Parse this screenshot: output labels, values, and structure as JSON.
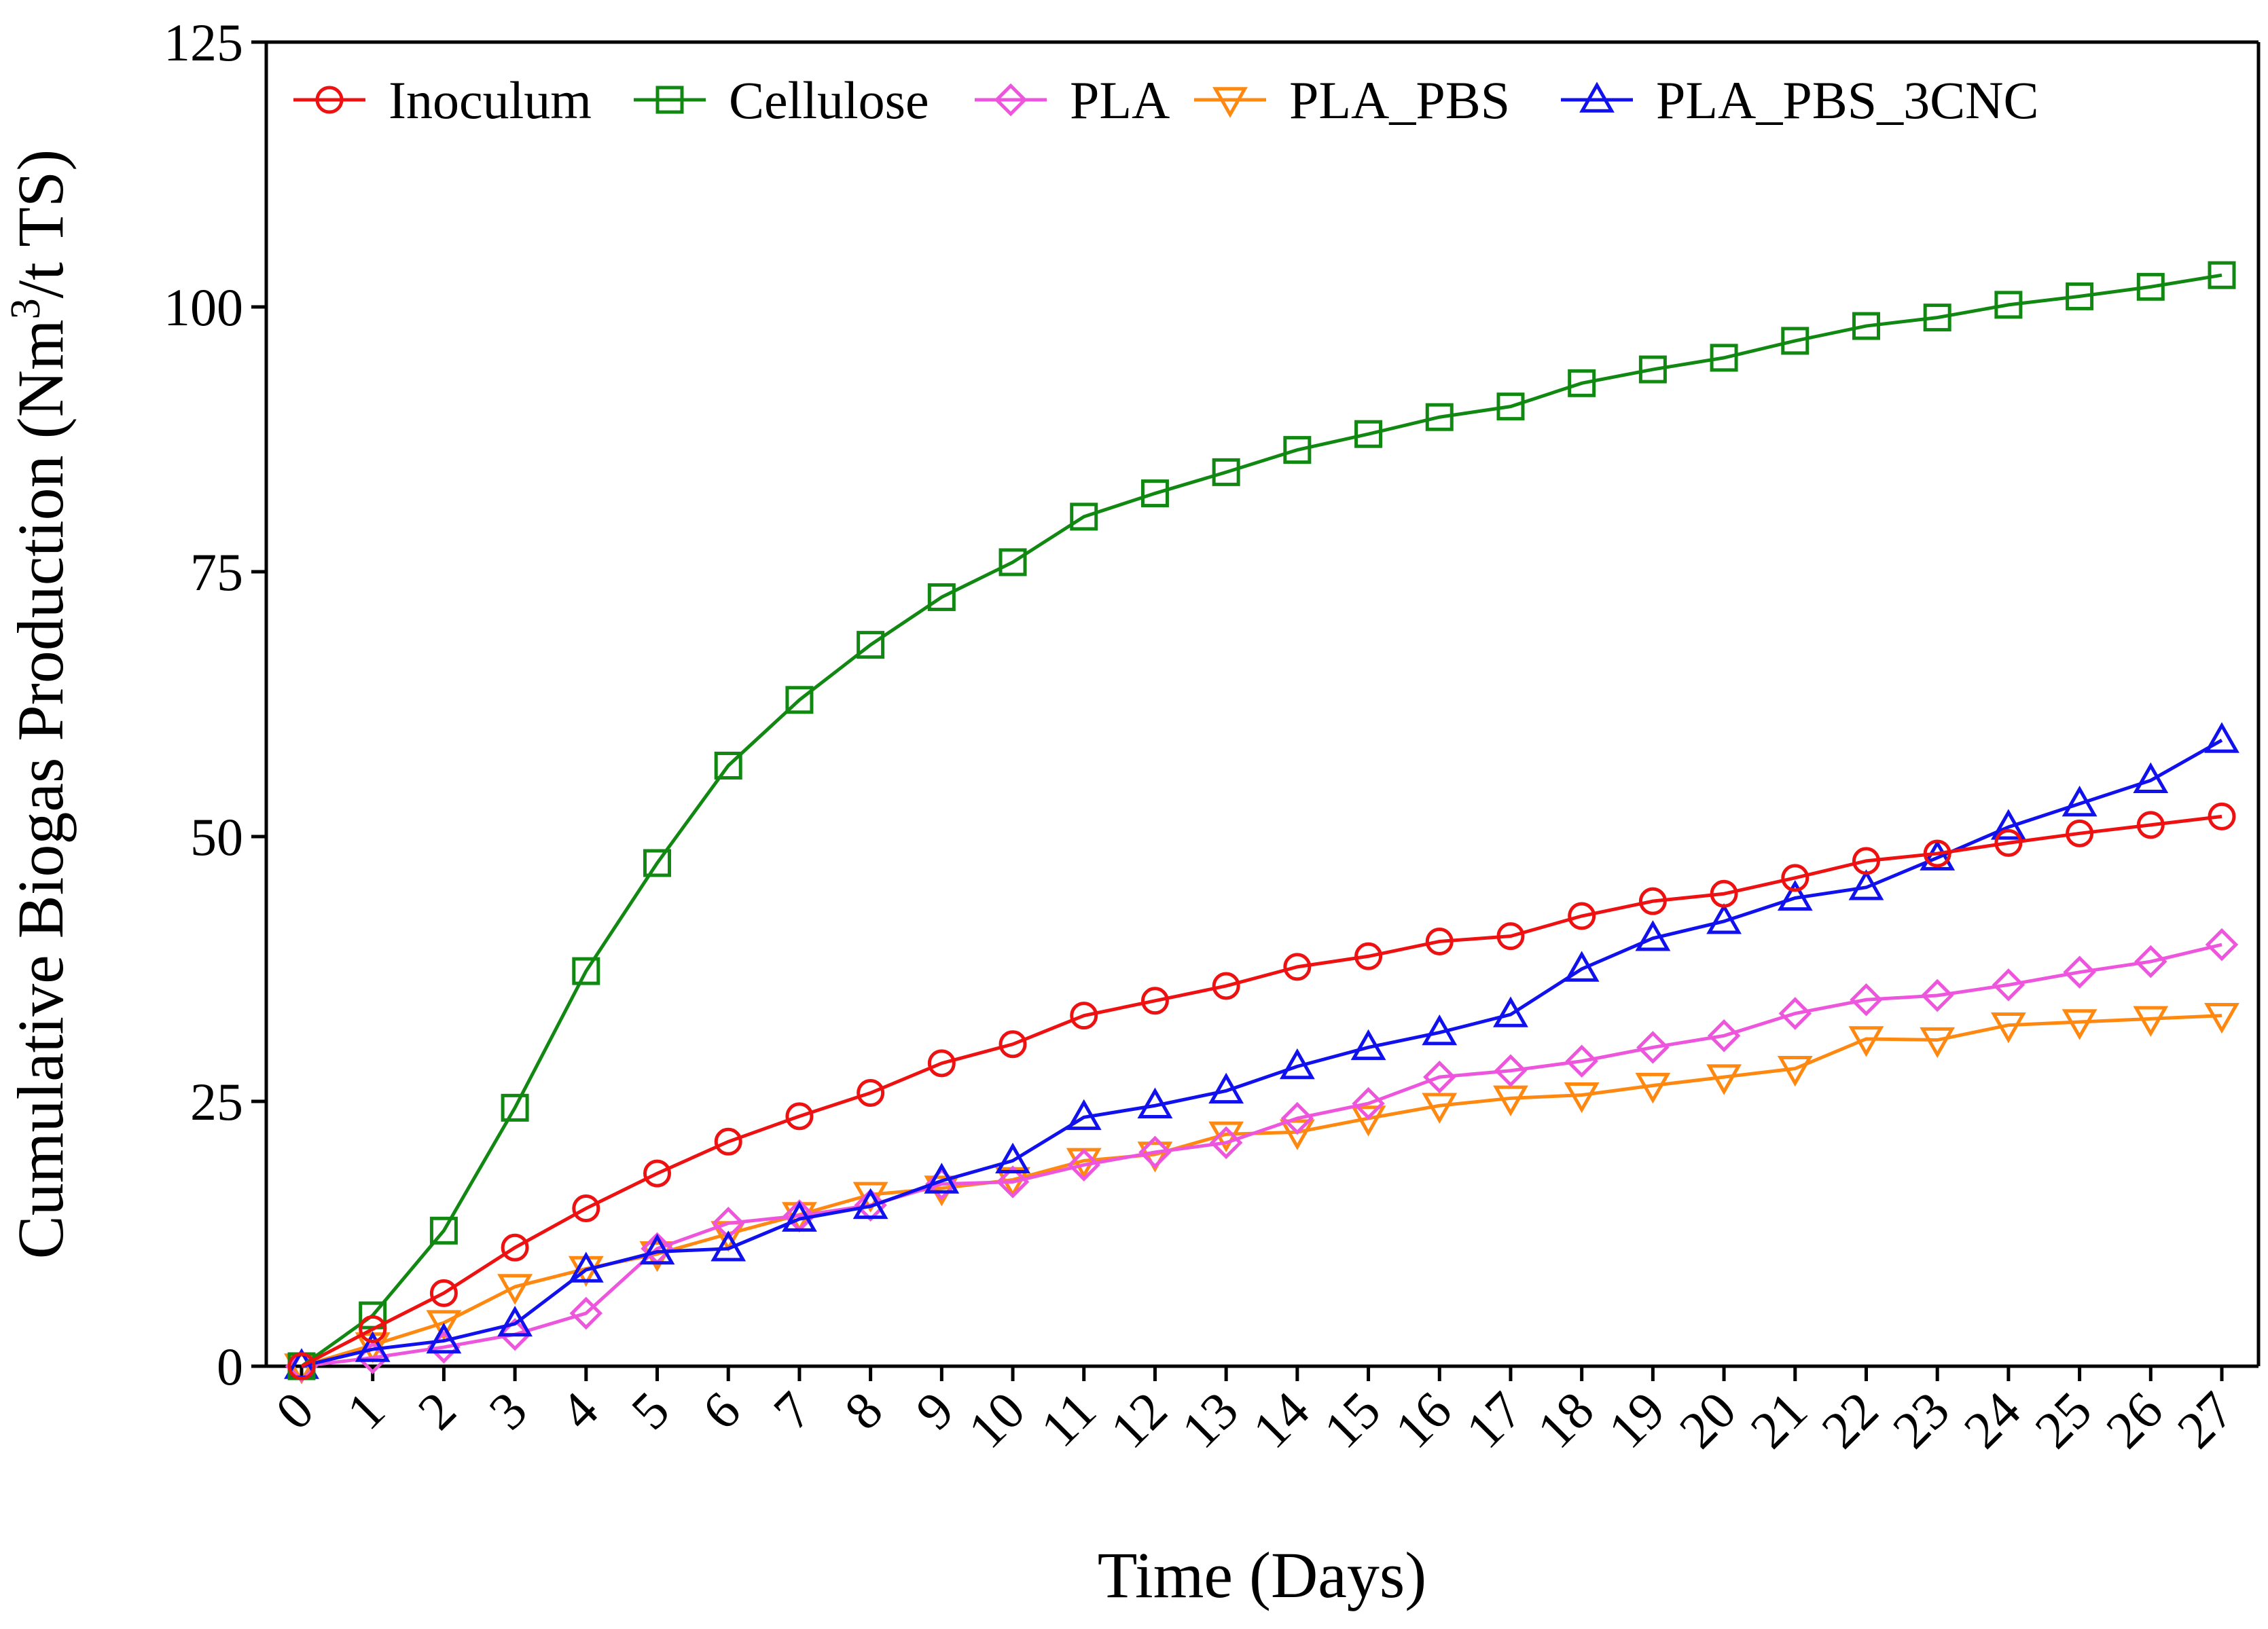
{
  "chart_data": {
    "type": "line",
    "title": "",
    "xlabel": "Time (Days)",
    "ylabel": "Cumulative Biogas Production (Nm",
    "ylabel_superscript": "3",
    "ylabel_suffix": "/t TS)",
    "xlim": [
      0,
      27
    ],
    "ylim": [
      0,
      125
    ],
    "yticks": [
      0,
      25,
      50,
      75,
      100,
      125
    ],
    "x": [
      0,
      1,
      2,
      3,
      4,
      5,
      6,
      7,
      8,
      9,
      10,
      11,
      12,
      13,
      14,
      15,
      16,
      17,
      18,
      19,
      20,
      21,
      22,
      23,
      24,
      25,
      26,
      27
    ],
    "grid": false,
    "legend_position": "top",
    "series": [
      {
        "name": "Inoculum",
        "color": "#ee1111",
        "marker": "circle",
        "values": [
          0,
          3.5,
          6.9,
          11.2,
          14.9,
          18.2,
          21.2,
          23.6,
          25.8,
          28.6,
          30.4,
          33.1,
          34.5,
          35.9,
          37.7,
          38.7,
          40.1,
          40.6,
          42.5,
          43.9,
          44.6,
          46.1,
          47.7,
          48.4,
          49.4,
          50.3,
          51.1,
          51.9
        ]
      },
      {
        "name": "Cellulose",
        "color": "#118811",
        "marker": "square",
        "values": [
          0,
          4.8,
          12.8,
          24.4,
          37.3,
          47.5,
          56.7,
          62.9,
          68.1,
          72.6,
          75.9,
          80.2,
          82.4,
          84.4,
          86.5,
          88.0,
          89.6,
          90.6,
          92.8,
          94.1,
          95.2,
          96.8,
          98.2,
          99.0,
          100.2,
          101.0,
          101.9,
          103.0
        ]
      },
      {
        "name": "PLA",
        "color": "#ee55dd",
        "marker": "diamond",
        "values": [
          0,
          0.8,
          1.8,
          3.0,
          5.0,
          11.1,
          13.5,
          14.2,
          15.2,
          17.2,
          17.4,
          19.0,
          20.2,
          21.1,
          23.4,
          24.8,
          27.3,
          27.9,
          28.8,
          30.1,
          31.2,
          33.3,
          34.6,
          35.0,
          36.0,
          37.2,
          38.2,
          39.8
        ]
      },
      {
        "name": "PLA_PBS",
        "color": "#ff8811",
        "marker": "triangle-down",
        "values": [
          0,
          2.0,
          4.1,
          7.5,
          9.2,
          10.6,
          12.5,
          14.3,
          16.2,
          16.8,
          17.6,
          19.4,
          20.0,
          21.9,
          22.1,
          23.4,
          24.6,
          25.3,
          25.6,
          26.5,
          27.3,
          28.1,
          30.9,
          30.8,
          32.2,
          32.5,
          32.8,
          33.1
        ]
      },
      {
        "name": "PLA_PBS_3CNC",
        "color": "#1111ee",
        "marker": "triangle-up",
        "values": [
          0,
          1.6,
          2.4,
          4.0,
          9.1,
          10.8,
          11.1,
          13.9,
          15.1,
          17.5,
          19.4,
          23.5,
          24.6,
          26.0,
          28.3,
          30.1,
          31.5,
          33.2,
          37.5,
          40.4,
          42.0,
          44.2,
          45.2,
          48.0,
          50.9,
          53.1,
          55.3,
          59.1
        ]
      }
    ]
  }
}
